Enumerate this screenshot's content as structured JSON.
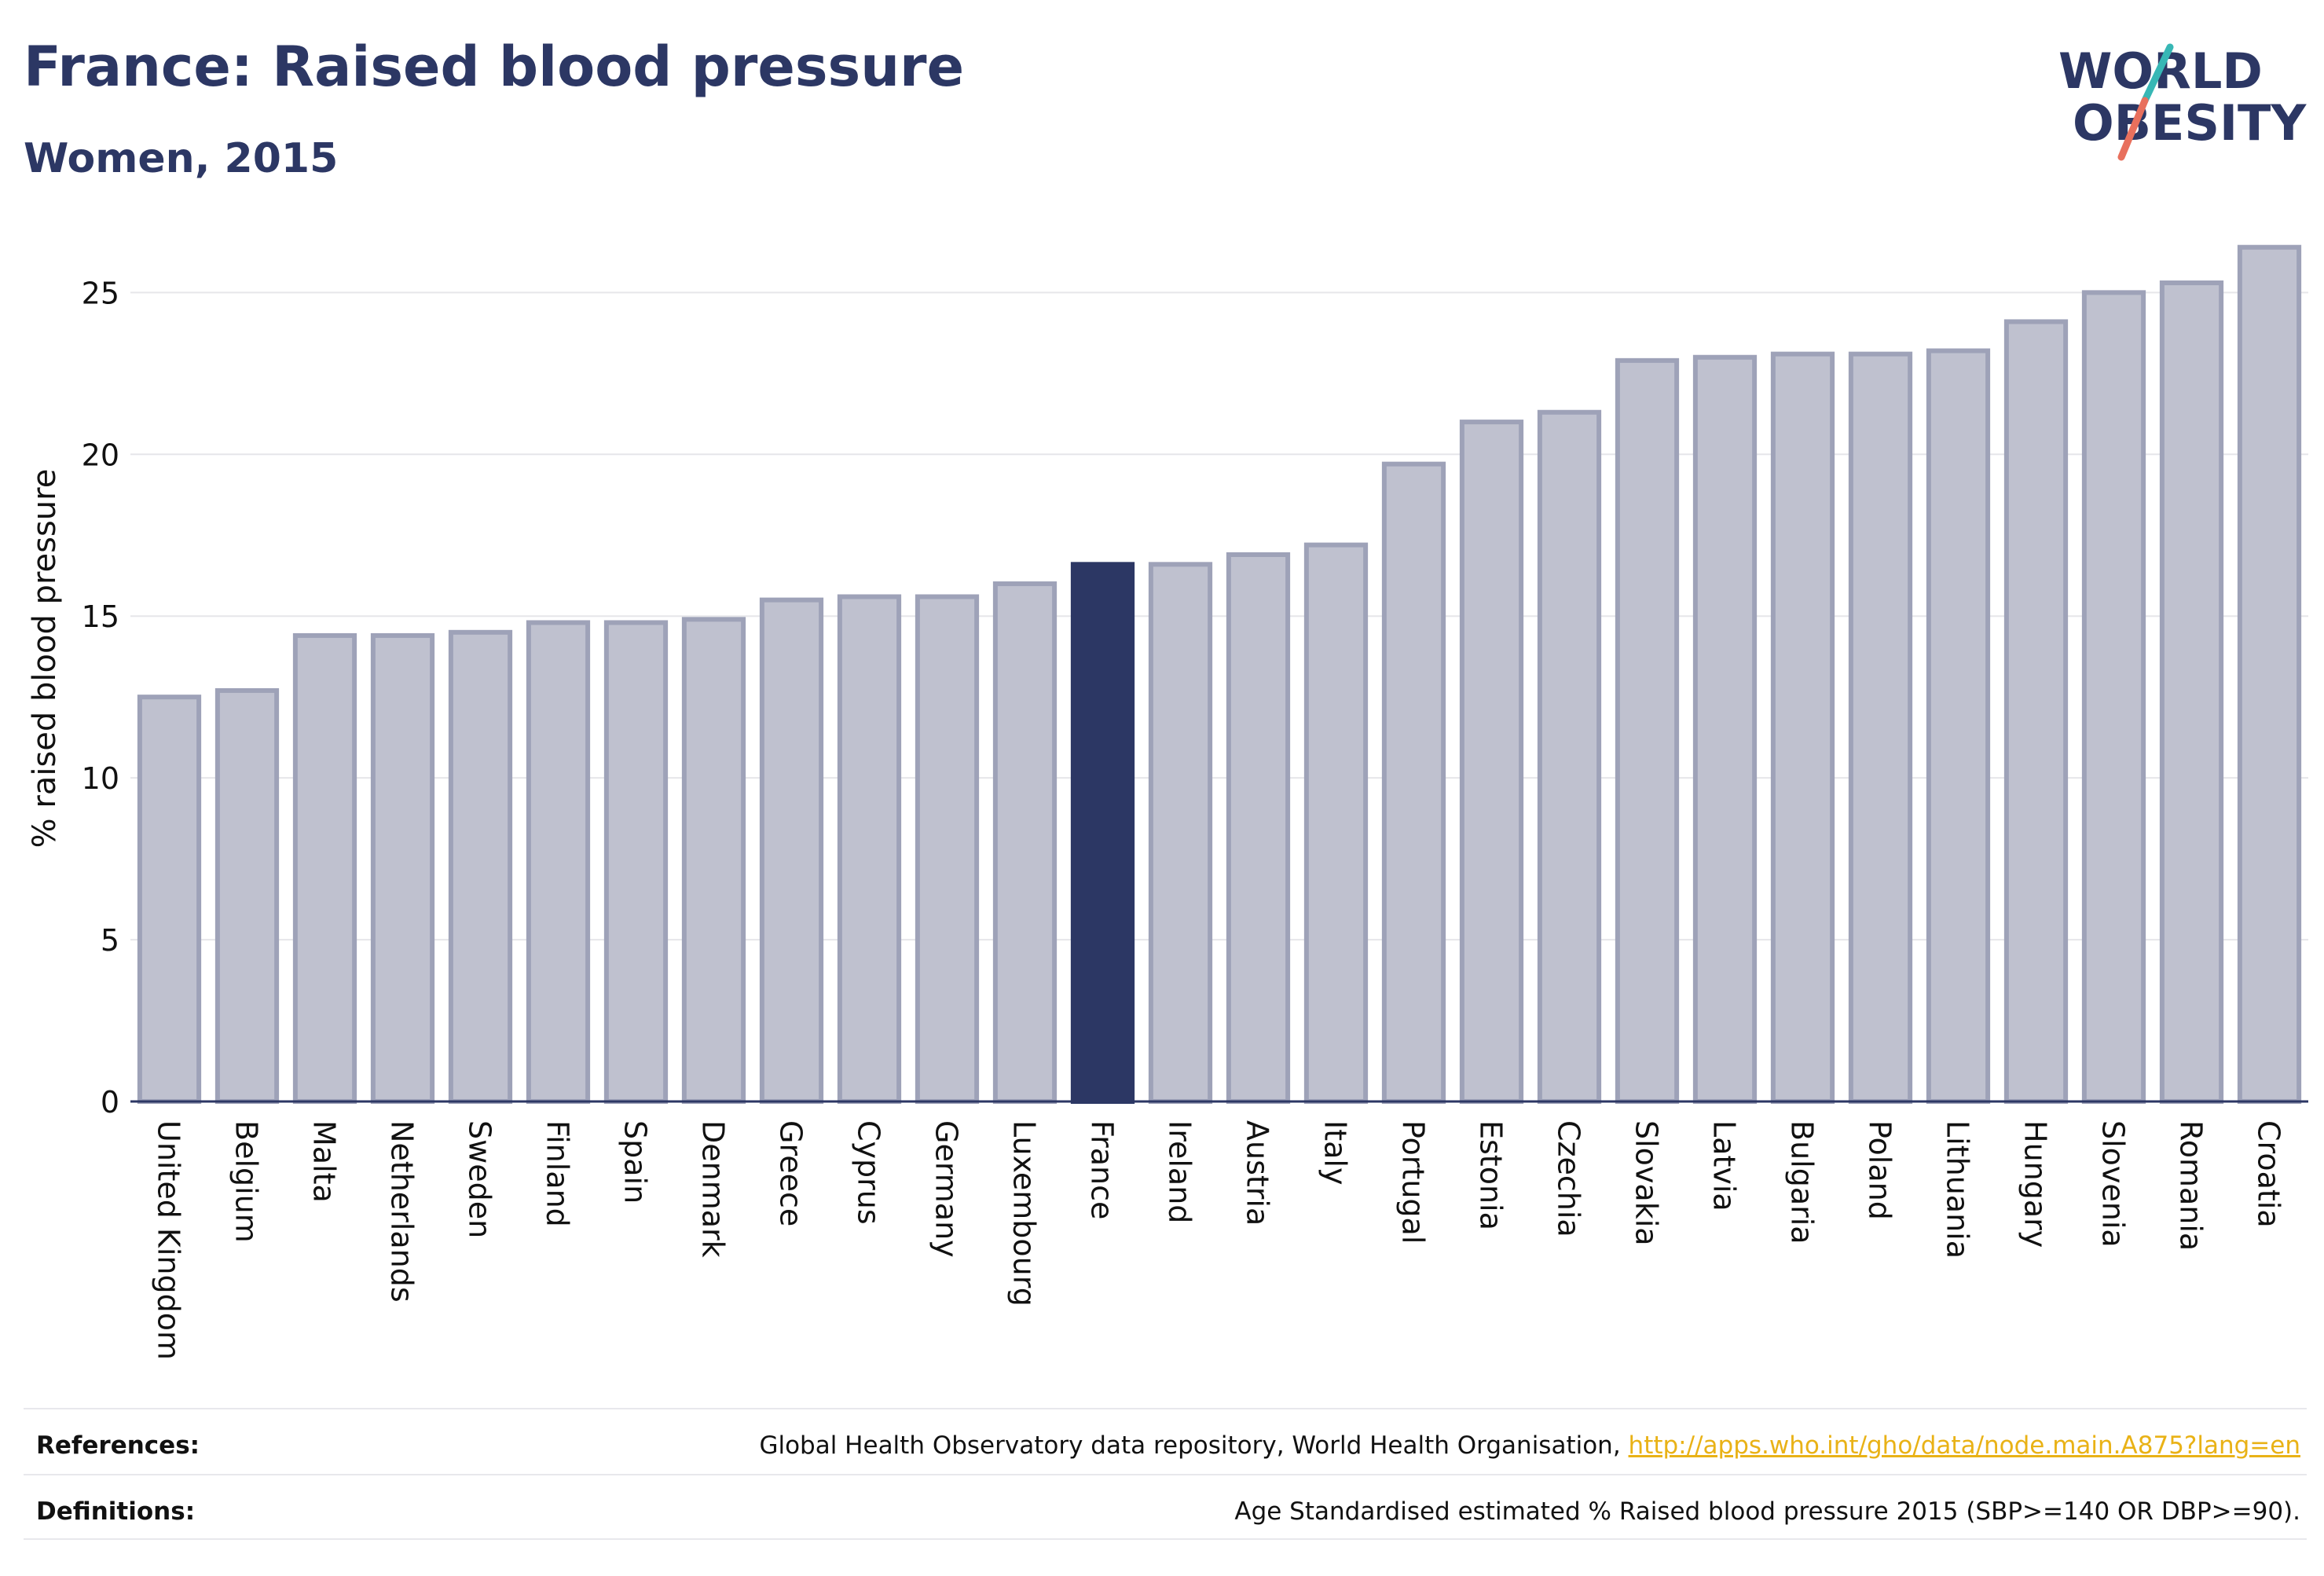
{
  "header": {
    "title": "France: Raised blood pressure",
    "subtitle": "Women, 2015",
    "logo_line1": "WORLD",
    "logo_line2": "OBESITY"
  },
  "colors": {
    "highlight": "#2c3764",
    "bar_fill": "#bfc1cf",
    "bar_stroke": "#9ea2b8",
    "logo_teal": "#37b7b5",
    "logo_coral": "#e8705d",
    "link": "#e9b216"
  },
  "chart_data": {
    "type": "bar",
    "title": "France: Raised blood pressure",
    "subtitle": "Women, 2015",
    "ylabel": "% raised blood pressure",
    "xlabel": "",
    "ylim": [
      0,
      27
    ],
    "yticks": [
      0,
      5,
      10,
      15,
      20,
      25
    ],
    "grid": true,
    "highlight_category": "France",
    "categories": [
      "United Kingdom",
      "Belgium",
      "Malta",
      "Netherlands",
      "Sweden",
      "Finland",
      "Spain",
      "Denmark",
      "Greece",
      "Cyprus",
      "Germany",
      "Luxembourg",
      "France",
      "Ireland",
      "Austria",
      "Italy",
      "Portugal",
      "Estonia",
      "Czechia",
      "Slovakia",
      "Latvia",
      "Bulgaria",
      "Poland",
      "Lithuania",
      "Hungary",
      "Slovenia",
      "Romania",
      "Croatia"
    ],
    "values": [
      12.5,
      12.7,
      14.4,
      14.4,
      14.5,
      14.8,
      14.8,
      14.9,
      15.5,
      15.6,
      15.6,
      16.0,
      16.6,
      16.6,
      16.9,
      17.2,
      19.7,
      21.0,
      21.3,
      22.9,
      23.0,
      23.1,
      23.1,
      23.2,
      24.1,
      25.0,
      25.3,
      26.4
    ]
  },
  "footer": {
    "references_label": "References:",
    "references_text": "Global Health Observatory data repository, World Health Organisation,",
    "references_link": "http://apps.who.int/gho/data/node.main.A875?lang=en",
    "definitions_label": "Definitions:",
    "definitions_text": "Age Standardised estimated % Raised blood pressure 2015 (SBP>=140 OR DBP>=90)."
  }
}
